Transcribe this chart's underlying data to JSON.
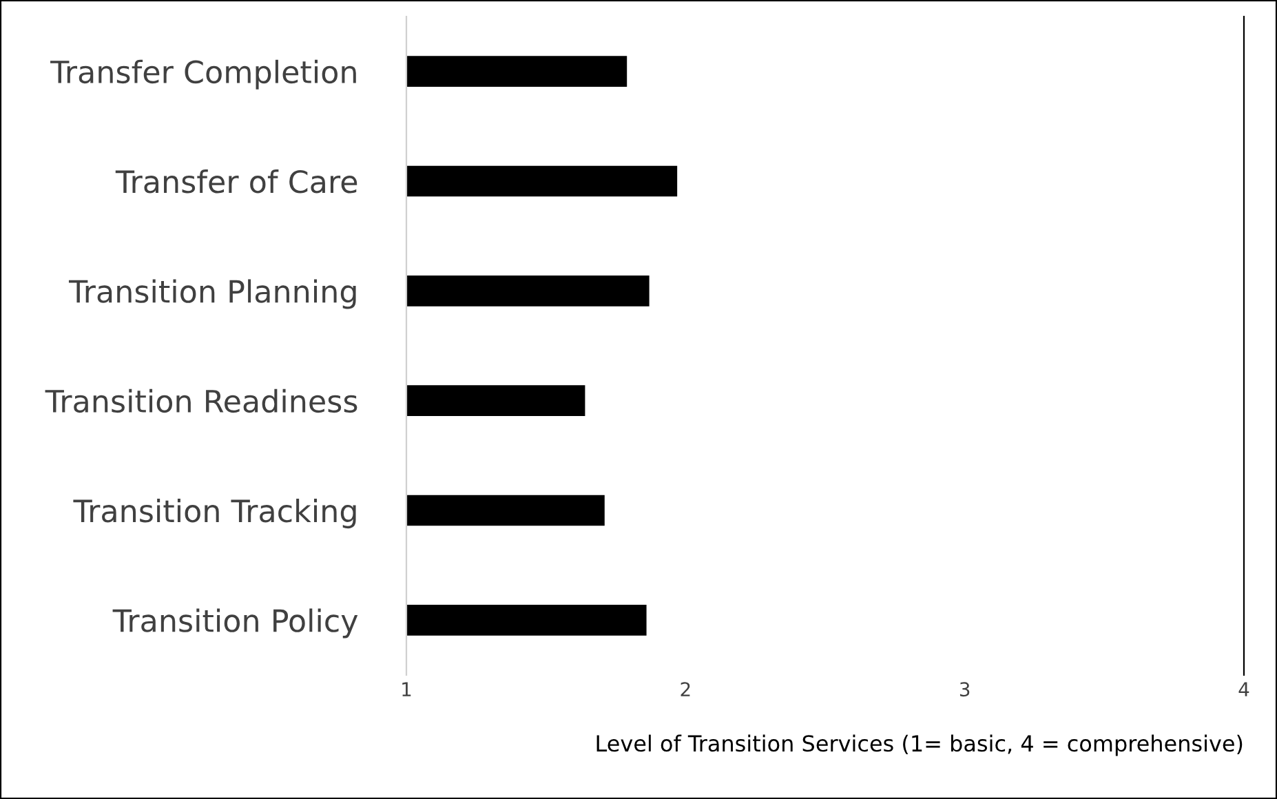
{
  "chart_data": {
    "type": "bar",
    "orientation": "horizontal",
    "xlabel": "Level of Transition Services (1= basic, 4 = comprehensive)",
    "categories": [
      "Transfer Completion",
      "Transfer of Care",
      "Transition Planning",
      "Transition Readiness",
      "Transition Tracking",
      "Transition Policy"
    ],
    "values": [
      1.79,
      1.97,
      1.87,
      1.64,
      1.71,
      1.86
    ],
    "color": "#000000",
    "xlim": [
      1,
      4
    ],
    "xticks": [
      1,
      2,
      3,
      4
    ],
    "grid": false,
    "legend": false
  }
}
